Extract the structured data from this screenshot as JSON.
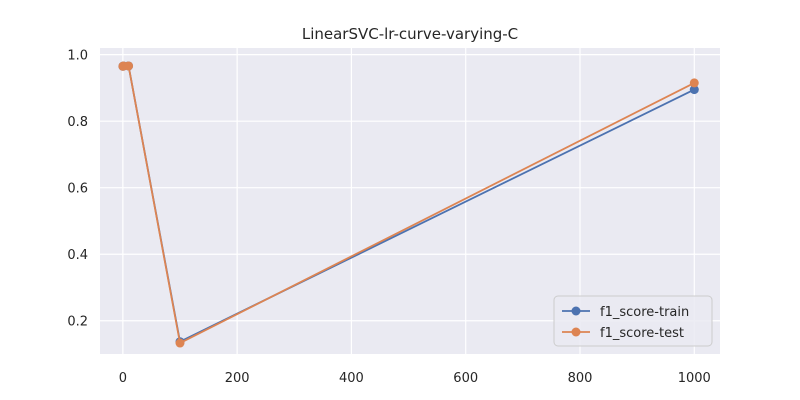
{
  "chart_data": {
    "type": "line",
    "title": "LinearSVC-lr-curve-varying-C",
    "xlabel": "",
    "ylabel": "",
    "xlim": [
      -40,
      1045
    ],
    "ylim": [
      0.1,
      1.02
    ],
    "xticks": [
      0,
      200,
      400,
      600,
      800,
      1000
    ],
    "yticks": [
      0.2,
      0.4,
      0.6,
      0.8,
      1.0
    ],
    "xtick_labels": [
      "0",
      "200",
      "400",
      "600",
      "800",
      "1000"
    ],
    "ytick_labels": [
      "0.2",
      "0.4",
      "0.6",
      "0.8",
      "1.0"
    ],
    "grid": true,
    "legend_position": "lower-right",
    "series": [
      {
        "name": "f1_score-train",
        "color": "#4c72b0",
        "x": [
          0.1,
          1,
          10,
          100,
          1000
        ],
        "y": [
          0.965,
          0.966,
          0.966,
          0.137,
          0.895
        ]
      },
      {
        "name": "f1_score-test",
        "color": "#dd8452",
        "x": [
          0.1,
          1,
          10,
          100,
          1000
        ],
        "y": [
          0.965,
          0.966,
          0.966,
          0.133,
          0.915
        ]
      }
    ]
  }
}
